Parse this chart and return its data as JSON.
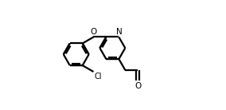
{
  "bg_color": "#ffffff",
  "line_color": "#000000",
  "lw": 1.6,
  "fig_width": 2.84,
  "fig_height": 1.38,
  "dpi": 100,
  "xlim": [
    0.0,
    1.0
  ],
  "ylim": [
    0.05,
    0.95
  ]
}
